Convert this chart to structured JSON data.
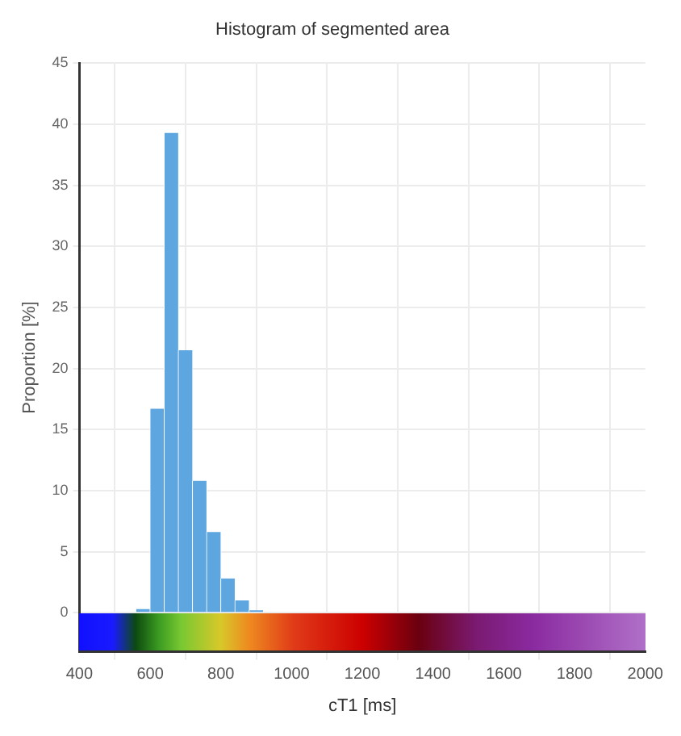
{
  "chart_data": {
    "type": "histogram",
    "title": "Histogram of segmented area",
    "xlabel": "cT1 [ms]",
    "ylabel": "Proportion [%]",
    "bins": [
      560,
      600,
      640,
      680,
      720,
      760,
      800,
      840,
      880,
      920
    ],
    "values": [
      0.3,
      16.7,
      39.3,
      21.5,
      10.8,
      6.6,
      2.8,
      1.0,
      0.2
    ],
    "color": "#5ea6e0",
    "xlim": [
      400,
      2000
    ],
    "xticks": [
      400,
      600,
      800,
      1000,
      1200,
      1400,
      1600,
      1800,
      2000
    ],
    "ylim": [
      -3.2,
      45
    ],
    "yticks": [
      0,
      5,
      10,
      15,
      20,
      25,
      30,
      35,
      40,
      45
    ],
    "grid": true,
    "legend": false
  }
}
